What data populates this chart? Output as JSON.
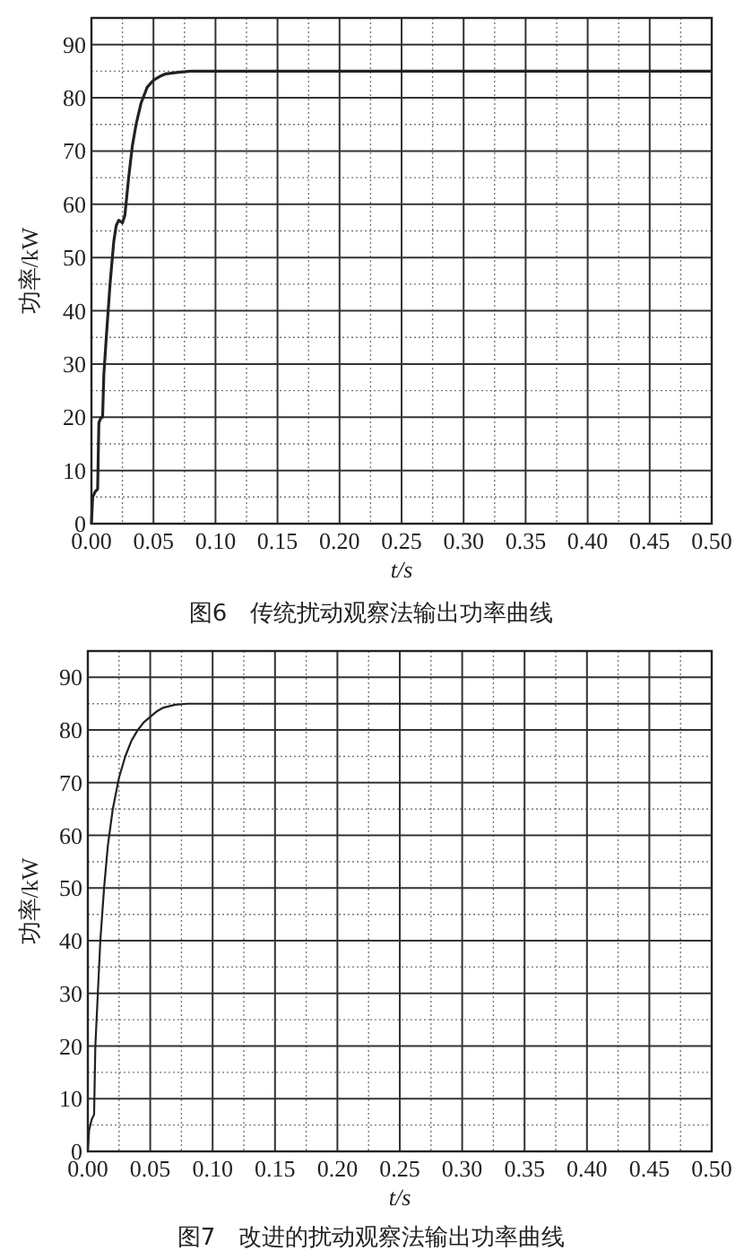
{
  "chart_data": [
    {
      "type": "line",
      "title": "图6　传统扰动观察法输出功率曲线",
      "xlabel": "t/s",
      "ylabel": "功率/kW",
      "xlim": [
        0,
        0.5
      ],
      "ylim": [
        0,
        95
      ],
      "xticks": [
        {
          "value": 0,
          "label": "0.00"
        },
        {
          "value": 0.05,
          "label": "0.05"
        },
        {
          "value": 0.1,
          "label": "0.10"
        },
        {
          "value": 0.15,
          "label": "0.15"
        },
        {
          "value": 0.2,
          "label": "0.20"
        },
        {
          "value": 0.25,
          "label": "0.25"
        },
        {
          "value": 0.3,
          "label": "0.30"
        },
        {
          "value": 0.35,
          "label": "0.35"
        },
        {
          "value": 0.4,
          "label": "0.40"
        },
        {
          "value": 0.45,
          "label": "0.45"
        },
        {
          "value": 0.5,
          "label": "0.50"
        }
      ],
      "yticks": [
        0,
        10,
        20,
        30,
        40,
        50,
        60,
        70,
        80,
        90
      ],
      "grid": true,
      "series": [
        {
          "color": "#222222",
          "x": [
            0,
            0.001,
            0.003,
            0.005,
            0.006,
            0.008,
            0.009,
            0.01,
            0.012,
            0.015,
            0.018,
            0.02,
            0.022,
            0.025,
            0.027,
            0.03,
            0.033,
            0.036,
            0.04,
            0.045,
            0.05,
            0.055,
            0.06,
            0.07,
            0.08,
            0.1,
            0.2,
            0.3,
            0.4,
            0.5
          ],
          "values": [
            0,
            5,
            6,
            6.5,
            19,
            20,
            20,
            28,
            35,
            45,
            53,
            56,
            57,
            56.5,
            58,
            65,
            71,
            75,
            79,
            82,
            83.3,
            84,
            84.5,
            84.8,
            85,
            85,
            85,
            85,
            85,
            85
          ]
        }
      ]
    },
    {
      "type": "line",
      "title": "图7　改进的扰动观察法输出功率曲线",
      "xlabel": "t/s",
      "ylabel": "功率/kW",
      "xlim": [
        0,
        0.5
      ],
      "ylim": [
        0,
        95
      ],
      "xticks": [
        {
          "value": 0,
          "label": "0.00"
        },
        {
          "value": 0.05,
          "label": "0.05"
        },
        {
          "value": 0.1,
          "label": "0.10"
        },
        {
          "value": 0.15,
          "label": "0.15"
        },
        {
          "value": 0.2,
          "label": "0.20"
        },
        {
          "value": 0.25,
          "label": "0.25"
        },
        {
          "value": 0.3,
          "label": "0.30"
        },
        {
          "value": 0.35,
          "label": "0.35"
        },
        {
          "value": 0.4,
          "label": "0.40"
        },
        {
          "value": 0.45,
          "label": "0.45"
        },
        {
          "value": 0.5,
          "label": "0.50"
        }
      ],
      "yticks": [
        0,
        10,
        20,
        30,
        40,
        50,
        60,
        70,
        80,
        90
      ],
      "grid": true,
      "series": [
        {
          "color": "#222222",
          "x": [
            0,
            0.001,
            0.003,
            0.005,
            0.006,
            0.008,
            0.01,
            0.013,
            0.016,
            0.02,
            0.025,
            0.03,
            0.035,
            0.04,
            0.045,
            0.05,
            0.055,
            0.06,
            0.07,
            0.08,
            0.1,
            0.2,
            0.3,
            0.4,
            0.5
          ],
          "values": [
            0,
            4,
            6,
            7,
            20,
            30,
            40,
            50,
            58,
            65,
            71,
            75,
            78,
            80,
            81.5,
            82.5,
            83.5,
            84.2,
            84.8,
            85,
            85,
            85,
            85,
            85,
            85
          ]
        }
      ]
    }
  ]
}
